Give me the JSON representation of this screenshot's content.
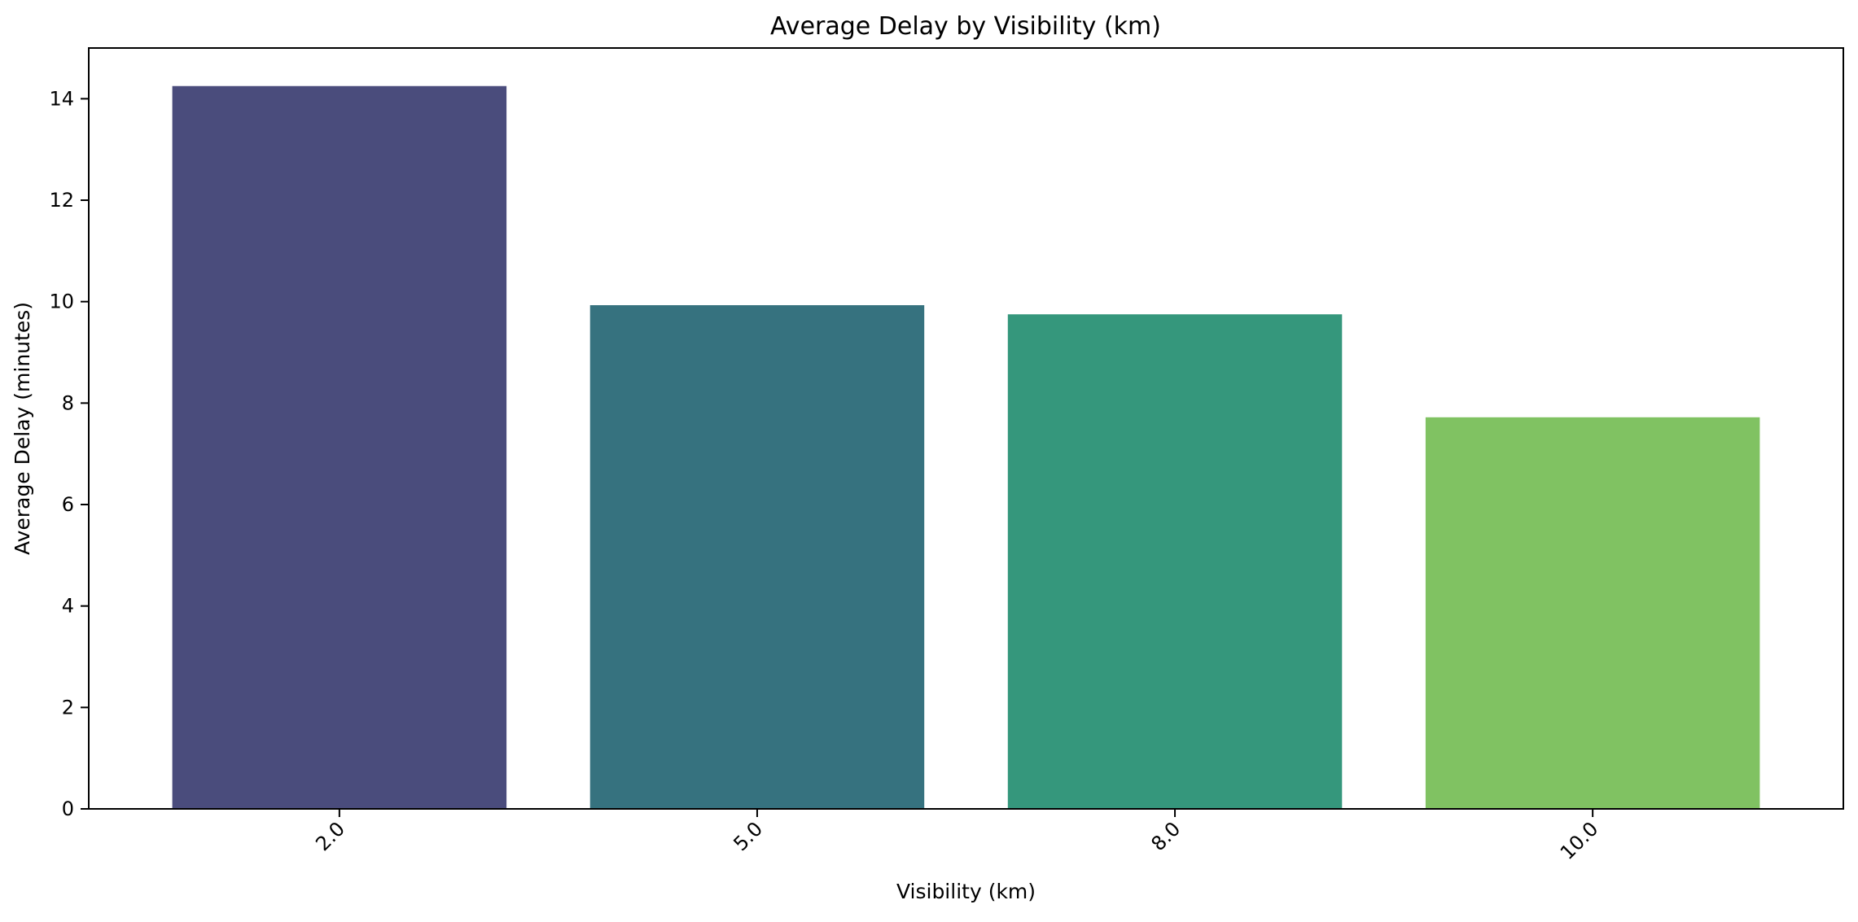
{
  "chart_data": {
    "type": "bar",
    "title": "Average Delay by Visibility (km)",
    "xlabel": "Visibility (km)",
    "ylabel": "Average Delay (minutes)",
    "categories": [
      "2.0",
      "5.0",
      "8.0",
      "10.0"
    ],
    "values": [
      14.25,
      9.93,
      9.75,
      7.72
    ],
    "colors": [
      "#4a4c7c",
      "#36727f",
      "#35977c",
      "#80c262"
    ],
    "ylim": [
      0,
      15
    ],
    "yticks": [
      "0",
      "2",
      "4",
      "6",
      "8",
      "10",
      "12",
      "14"
    ],
    "xtick_rotation": 45,
    "grid": false,
    "legend": "none"
  }
}
